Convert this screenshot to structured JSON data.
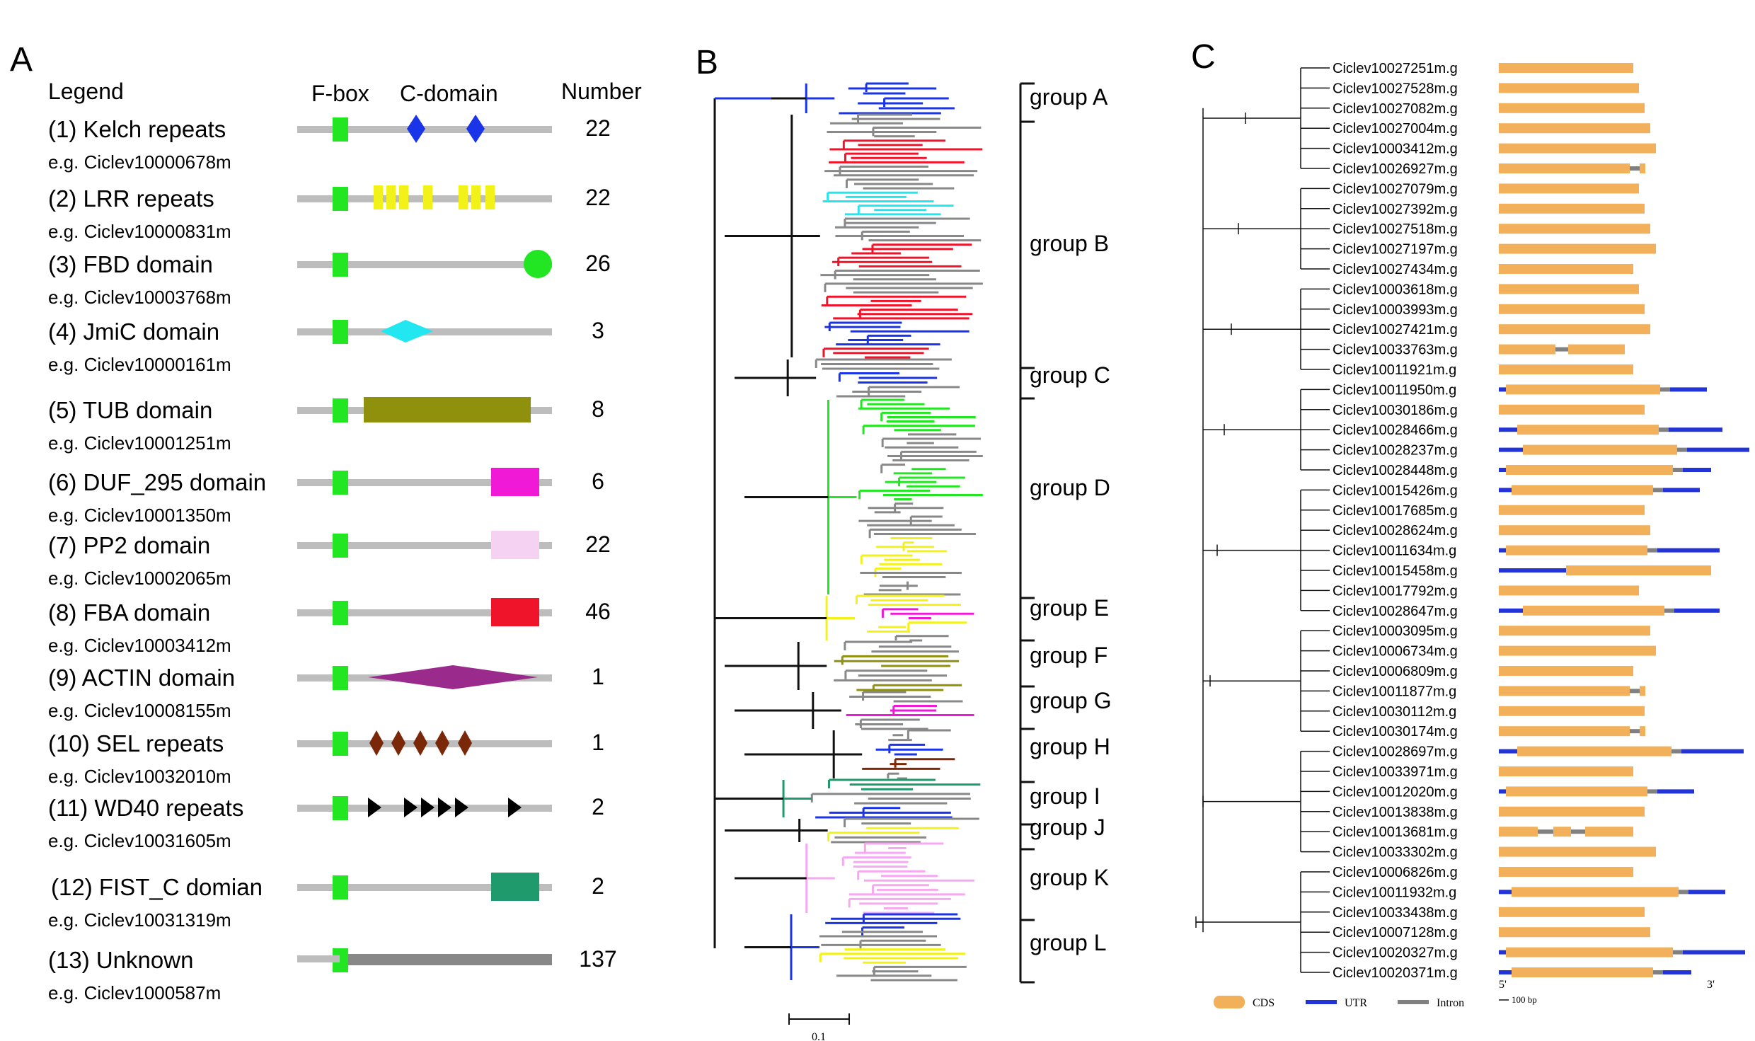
{
  "panels": {
    "a": "A",
    "b": "B",
    "c": "C"
  },
  "panel_a": {
    "legend_header": "Legend",
    "fbox_header": "F-box",
    "cdomain_header": "C-domain",
    "number_header": "Number",
    "rows": [
      {
        "label": "(1) Kelch repeats",
        "example": "e.g. Ciclev10000678m",
        "number": "22",
        "color": "#1a35e8",
        "motif": "kelch"
      },
      {
        "label": "(2) LRR repeats",
        "example": "e.g. Ciclev10000831m",
        "number": "22",
        "color": "#f2f21a",
        "motif": "lrr"
      },
      {
        "label": "(3) FBD domain",
        "example": "e.g. Ciclev10003768m",
        "number": "26",
        "color": "#22e622",
        "motif": "fbd"
      },
      {
        "label": "(4) JmiC domain",
        "example": "e.g. Ciclev10000161m",
        "number": "3",
        "color": "#22e6f0",
        "motif": "jmjc"
      },
      {
        "label": "(5) TUB domain",
        "example": "e.g. Ciclev10001251m",
        "number": "8",
        "color": "#8f900c",
        "motif": "tub"
      },
      {
        "label": "(6) DUF_295 domain",
        "example": "e.g. Ciclev10001350m",
        "number": "6",
        "color": "#f01ad6",
        "motif": "duf"
      },
      {
        "label": "(7) PP2 domain",
        "example": "e.g. Ciclev10002065m",
        "number": "22",
        "color": "#f6d2f2",
        "motif": "pp2"
      },
      {
        "label": "(8) FBA domain",
        "example": "e.g. Ciclev10003412m",
        "number": "46",
        "color": "#f0142a",
        "motif": "fba"
      },
      {
        "label": "(9) ACTIN domain",
        "example": "e.g. Ciclev10008155m",
        "number": "1",
        "color": "#9a2a8c",
        "motif": "actin"
      },
      {
        "label": "(10) SEL repeats",
        "example": "e.g. Ciclev10032010m",
        "number": "1",
        "color": "#7a2808",
        "motif": "sel"
      },
      {
        "label": "(11) WD40 repeats",
        "example": "e.g. Ciclev10031605m",
        "number": "2",
        "color": "#000000",
        "motif": "wd40"
      },
      {
        "label": "(12) FIST_C domian",
        "example": "e.g. Ciclev10031319m",
        "number": "2",
        "color": "#1f9a6c",
        "motif": "fist"
      },
      {
        "label": "(13) Unknown",
        "example": "e.g. Ciclev1000587m",
        "number": "137",
        "color": "#888888",
        "motif": "unknown"
      }
    ]
  },
  "panel_b": {
    "groups": [
      {
        "label": "group A",
        "color": "#1a35e8"
      },
      {
        "label": "group B",
        "color": "#f0142a"
      },
      {
        "label": "group C",
        "color": "#888888"
      },
      {
        "label": "group D",
        "color": "#22e622"
      },
      {
        "label": "group E",
        "color": "#f2f21a"
      },
      {
        "label": "group F",
        "color": "#8f900c"
      },
      {
        "label": "group G",
        "color": "#f01ad6"
      },
      {
        "label": "group H",
        "color": "#7a2808"
      },
      {
        "label": "group I",
        "color": "#1f9a6c"
      },
      {
        "label": "group J",
        "color": "#22e6f0"
      },
      {
        "label": "group K",
        "color": "#f6a8f0"
      },
      {
        "label": "group L",
        "color": "#1a35e8"
      }
    ],
    "scale_label": "0.1"
  },
  "panel_c": {
    "genes": [
      {
        "name": "Ciclev10027251m.g",
        "structure": "cds"
      },
      {
        "name": "Ciclev10027528m.g",
        "structure": "cds"
      },
      {
        "name": "Ciclev10027082m.g",
        "structure": "cds"
      },
      {
        "name": "Ciclev10027004m.g",
        "structure": "cds"
      },
      {
        "name": "Ciclev10003412m.g",
        "structure": "cds"
      },
      {
        "name": "Ciclev10026927m.g",
        "structure": "cds_intron"
      },
      {
        "name": "Ciclev10027079m.g",
        "structure": "cds"
      },
      {
        "name": "Ciclev10027392m.g",
        "structure": "cds"
      },
      {
        "name": "Ciclev10027518m.g",
        "structure": "cds"
      },
      {
        "name": "Ciclev10027197m.g",
        "structure": "cds"
      },
      {
        "name": "Ciclev10027434m.g",
        "structure": "cds"
      },
      {
        "name": "Ciclev10003618m.g",
        "structure": "cds"
      },
      {
        "name": "Ciclev10003993m.g",
        "structure": "cds"
      },
      {
        "name": "Ciclev10027421m.g",
        "structure": "cds"
      },
      {
        "name": "Ciclev10033763m.g",
        "structure": "two_exon"
      },
      {
        "name": "Ciclev10011921m.g",
        "structure": "cds"
      },
      {
        "name": "Ciclev10011950m.g",
        "structure": "utr_multi"
      },
      {
        "name": "Ciclev10030186m.g",
        "structure": "cds"
      },
      {
        "name": "Ciclev10028466m.g",
        "structure": "utr_both"
      },
      {
        "name": "Ciclev10028237m.g",
        "structure": "utr_both"
      },
      {
        "name": "Ciclev10028448m.g",
        "structure": "utr_both"
      },
      {
        "name": "Ciclev10015426m.g",
        "structure": "utr_both"
      },
      {
        "name": "Ciclev10017685m.g",
        "structure": "cds"
      },
      {
        "name": "Ciclev10028624m.g",
        "structure": "cds"
      },
      {
        "name": "Ciclev10011634m.g",
        "structure": "utr_both"
      },
      {
        "name": "Ciclev10015458m.g",
        "structure": "utr_long"
      },
      {
        "name": "Ciclev10017792m.g",
        "structure": "cds"
      },
      {
        "name": "Ciclev10028647m.g",
        "structure": "utr_both"
      },
      {
        "name": "Ciclev10003095m.g",
        "structure": "cds"
      },
      {
        "name": "Ciclev10006734m.g",
        "structure": "cds"
      },
      {
        "name": "Ciclev10006809m.g",
        "structure": "cds"
      },
      {
        "name": "Ciclev10011877m.g",
        "structure": "cds_intron"
      },
      {
        "name": "Ciclev10030112m.g",
        "structure": "cds"
      },
      {
        "name": "Ciclev10030174m.g",
        "structure": "cds_intron"
      },
      {
        "name": "Ciclev10028697m.g",
        "structure": "utr_both"
      },
      {
        "name": "Ciclev10033971m.g",
        "structure": "cds"
      },
      {
        "name": "Ciclev10012020m.g",
        "structure": "utr_both"
      },
      {
        "name": "Ciclev10013838m.g",
        "structure": "cds"
      },
      {
        "name": "Ciclev10013681m.g",
        "structure": "three_exon"
      },
      {
        "name": "Ciclev10033302m.g",
        "structure": "cds"
      },
      {
        "name": "Ciclev10006826m.g",
        "structure": "cds"
      },
      {
        "name": "Ciclev10011932m.g",
        "structure": "utr_both"
      },
      {
        "name": "Ciclev10033438m.g",
        "structure": "cds"
      },
      {
        "name": "Ciclev10007128m.g",
        "structure": "cds"
      },
      {
        "name": "Ciclev10020327m.g",
        "structure": "utr_both"
      },
      {
        "name": "Ciclev10020371m.g",
        "structure": "utr_both"
      }
    ],
    "legend": {
      "cds": "CDS",
      "utr": "UTR",
      "intron": "Intron",
      "five_prime": "5'",
      "three_prime": "3'",
      "scale": "100 bp"
    },
    "colors": {
      "cds": "#f2b05a",
      "utr": "#2233d8",
      "intron": "#808080"
    }
  }
}
